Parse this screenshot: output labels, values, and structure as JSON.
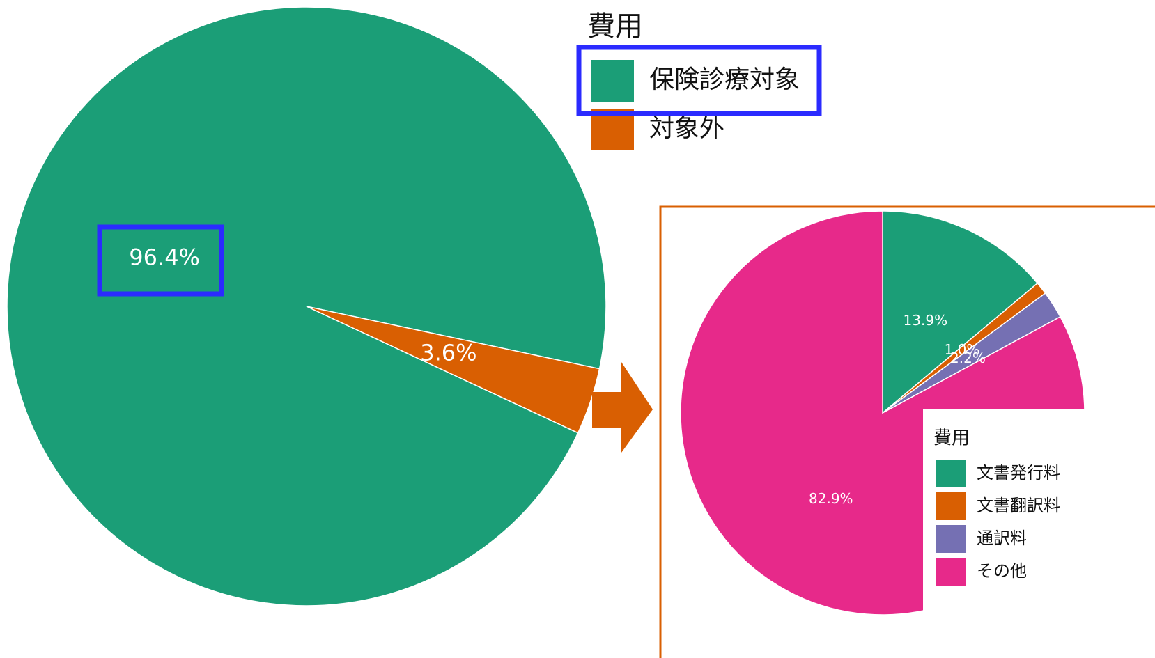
{
  "chart_data": [
    {
      "type": "pie",
      "legend_title": "費用",
      "categories": [
        "保険診療対象",
        "対象外"
      ],
      "values": [
        96.4,
        3.6
      ],
      "value_labels": [
        "96.4%",
        "3.6%"
      ],
      "colors": [
        "#1b9e77",
        "#d95f02"
      ]
    },
    {
      "type": "pie",
      "legend_title": "費用",
      "categories": [
        "文書発行料",
        "文書翻訳料",
        "通訳料",
        "その他"
      ],
      "values": [
        13.9,
        1.0,
        2.2,
        82.9
      ],
      "value_labels": [
        "13.9%",
        "1.0%",
        "2.2%",
        "82.9%"
      ],
      "colors": [
        "#1b9e77",
        "#d95f02",
        "#7570b3",
        "#e7298a"
      ]
    }
  ]
}
